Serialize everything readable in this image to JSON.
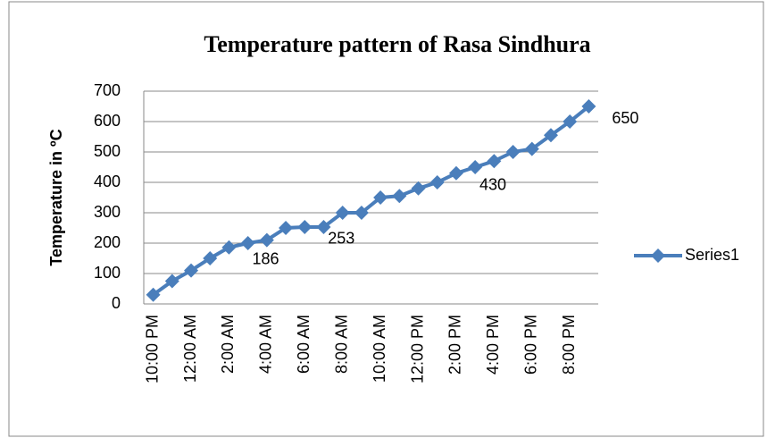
{
  "chart_data": {
    "type": "line",
    "title": "Temperature pattern of Rasa Sindhura",
    "y_label": "Temperature in ºC",
    "categories": [
      "10:00 PM",
      null,
      "12:00 AM",
      null,
      "2:00 AM",
      null,
      "4:00 AM",
      null,
      "6:00 AM",
      null,
      "8:00 AM",
      null,
      "10:00 AM",
      null,
      "12:00 PM",
      null,
      "2:00 PM",
      null,
      "4:00 PM",
      null,
      "6:00 PM",
      null,
      "8:00 PM",
      null
    ],
    "series": [
      {
        "name": "Series1",
        "color": "#4a7ebb",
        "values": [
          30,
          75,
          110,
          150,
          186,
          200,
          210,
          250,
          253,
          253,
          300,
          300,
          350,
          355,
          380,
          400,
          430,
          450,
          470,
          500,
          510,
          555,
          600,
          650
        ],
        "value_labels": [
          null,
          null,
          null,
          null,
          "186",
          null,
          null,
          null,
          "253",
          null,
          null,
          null,
          null,
          null,
          null,
          null,
          "430",
          null,
          null,
          null,
          null,
          null,
          null,
          "650"
        ]
      }
    ],
    "ylim": [
      0,
      700
    ],
    "yticks": [
      0,
      100,
      200,
      300,
      400,
      500,
      600,
      700
    ],
    "grid": true,
    "legend": "right"
  }
}
